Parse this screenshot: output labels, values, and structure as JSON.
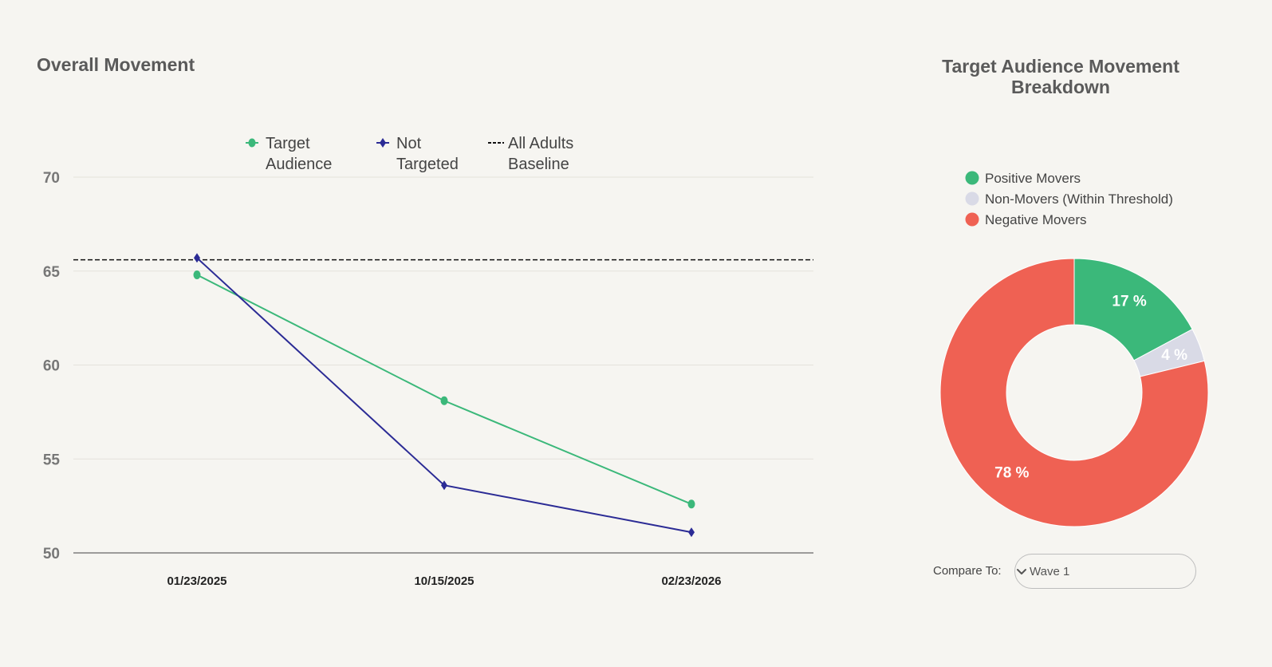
{
  "line_chart": {
    "title": "Overall Movement"
  },
  "pie_chart": {
    "title": "Target Audience Movement Breakdown"
  },
  "compare": {
    "label": "Compare To:",
    "value": "Wave 1"
  },
  "colors": {
    "target": "#3bb87a",
    "not_targeted": "#2b2b95",
    "baseline": "#111111",
    "positive": "#3bb87a",
    "non_movers": "#d9dae6",
    "negative": "#ef6153"
  },
  "chart_data": [
    {
      "type": "line",
      "title": "Overall Movement",
      "categories": [
        "01/23/2025",
        "10/15/2025",
        "02/23/2026"
      ],
      "series": [
        {
          "name": "Target Audience",
          "legend_lines": [
            "Target",
            "Audience"
          ],
          "marker": "circle",
          "values": [
            64.8,
            58.1,
            52.6
          ]
        },
        {
          "name": "Not Targeted",
          "legend_lines": [
            "Not",
            "Targeted"
          ],
          "marker": "diamond",
          "values": [
            65.7,
            53.6,
            51.1
          ]
        }
      ],
      "baseline": {
        "name": "All Adults Baseline",
        "legend_lines": [
          "All Adults",
          "Baseline"
        ],
        "value": 65.6,
        "style": "dashed"
      },
      "ylim": [
        50,
        70
      ],
      "yticks": [
        50,
        55,
        60,
        65,
        70
      ],
      "grid": true,
      "legend_position": "top"
    },
    {
      "type": "pie",
      "title": "Target Audience Movement Breakdown",
      "donut": true,
      "labels": [
        "Positive Movers",
        "Non-Movers (Within Threshold)",
        "Negative Movers"
      ],
      "values": [
        17,
        4,
        78
      ],
      "value_labels": [
        "17 %",
        "4 %",
        "78 %"
      ],
      "legend_position": "top"
    }
  ]
}
